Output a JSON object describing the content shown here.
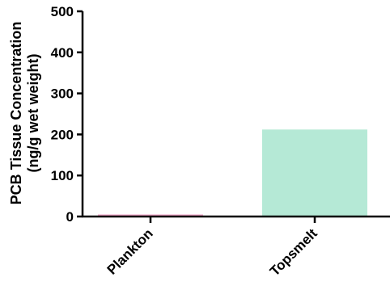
{
  "chart_data": {
    "type": "bar",
    "categories": [
      "Plankton",
      "Topsmelt"
    ],
    "values": [
      5,
      212
    ],
    "colors": [
      "#f2a6c8",
      "#b5e9d6"
    ],
    "title": "",
    "xlabel": "",
    "ylabel_lines": [
      "PCB Tissue Concentration",
      "(ng/g wet weight)"
    ],
    "ylim": [
      0,
      500
    ],
    "yticks": [
      "0",
      "100",
      "200",
      "300",
      "400",
      "500"
    ],
    "grid": false,
    "legend": "none"
  }
}
